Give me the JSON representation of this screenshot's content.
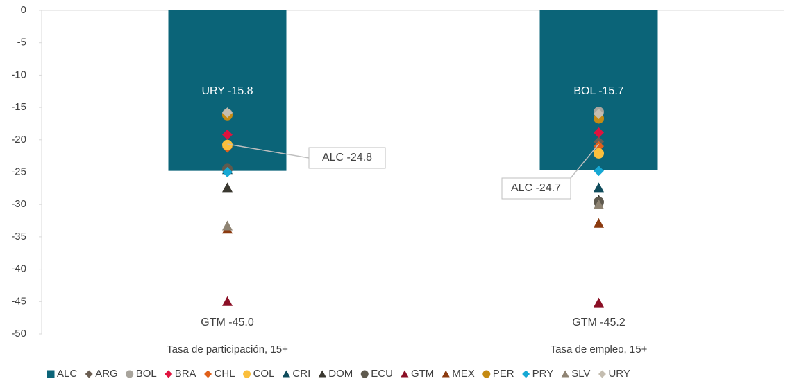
{
  "chart_data": {
    "type": "bar",
    "categories": [
      "Tasa de participación, 15+",
      "Tasa de empleo, 15+"
    ],
    "ylim": [
      -50,
      0
    ],
    "yticks": [
      0,
      -5,
      -10,
      -15,
      -20,
      -25,
      -30,
      -35,
      -40,
      -45,
      -50
    ],
    "series": [
      {
        "name": "ALC",
        "type": "bar",
        "marker": "square",
        "color": "#0b6478",
        "values": [
          -24.8,
          -24.7
        ]
      },
      {
        "name": "ARG",
        "type": "scatter",
        "marker": "diamond",
        "color": "#6b5e52",
        "values": [
          -24.5,
          -20.3
        ]
      },
      {
        "name": "BOL",
        "type": "scatter",
        "marker": "circle",
        "color": "#a8a49c",
        "values": [
          -16.0,
          -15.7
        ]
      },
      {
        "name": "BRA",
        "type": "scatter",
        "marker": "diamond",
        "color": "#e0133e",
        "values": [
          -19.2,
          -18.9
        ]
      },
      {
        "name": "CHL",
        "type": "scatter",
        "marker": "diamond",
        "color": "#e0601a",
        "values": [
          -21.2,
          -21.0
        ]
      },
      {
        "name": "COL",
        "type": "scatter",
        "marker": "circle",
        "color": "#fbbf3c",
        "values": [
          -20.8,
          -22.1
        ]
      },
      {
        "name": "CRI",
        "type": "scatter",
        "marker": "triangle",
        "color": "#0f4c5c",
        "values": [
          -24.6,
          -27.4
        ]
      },
      {
        "name": "DOM",
        "type": "scatter",
        "marker": "triangle",
        "color": "#3a3830",
        "values": [
          -27.4,
          -29.3
        ]
      },
      {
        "name": "ECU",
        "type": "scatter",
        "marker": "circle",
        "color": "#5f5a4e",
        "values": [
          -24.5,
          -29.6
        ]
      },
      {
        "name": "GTM",
        "type": "scatter",
        "marker": "triangle",
        "color": "#8b0f25",
        "values": [
          -45.0,
          -45.2
        ]
      },
      {
        "name": "MEX",
        "type": "scatter",
        "marker": "triangle",
        "color": "#8b3a0f",
        "values": [
          -33.8,
          -32.9
        ]
      },
      {
        "name": "PER",
        "type": "scatter",
        "marker": "circle",
        "color": "#c48a12",
        "values": [
          -16.2,
          -16.7
        ]
      },
      {
        "name": "PRY",
        "type": "scatter",
        "marker": "diamond",
        "color": "#16a8d4",
        "values": [
          -25.0,
          -24.8
        ]
      },
      {
        "name": "SLV",
        "type": "scatter",
        "marker": "triangle",
        "color": "#8f8473",
        "values": [
          -33.3,
          -30.0
        ]
      },
      {
        "name": "URY",
        "type": "scatter",
        "marker": "diamond",
        "color": "#c4bdb0",
        "values": [
          -15.8,
          -16.0
        ]
      }
    ],
    "annotations": [
      "URY -15.8",
      "GTM -45.0",
      "ALC -24.8",
      "BOL -15.7",
      "GTM -45.2",
      "ALC -24.7"
    ]
  }
}
